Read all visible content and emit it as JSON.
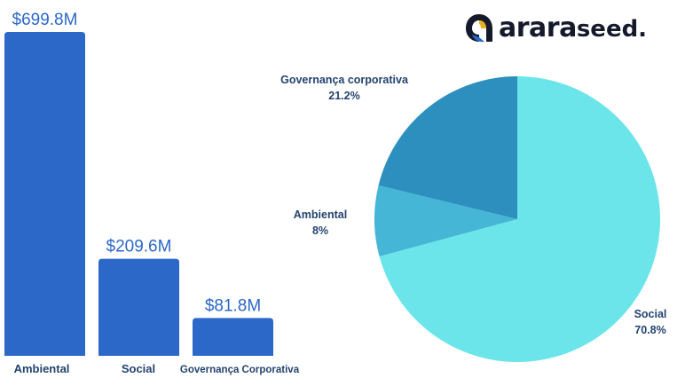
{
  "brand": {
    "name_bold": "arara",
    "name_light": "seed."
  },
  "chart_data": [
    {
      "type": "bar",
      "title": "",
      "xlabel": "",
      "ylabel": "",
      "categories": [
        "Ambiental",
        "Social",
        "Governança Corporativa"
      ],
      "values": [
        699.8,
        209.6,
        81.8
      ],
      "value_labels": [
        "$699.8M",
        "$209.6M",
        "$81.8M"
      ],
      "ylim": [
        0,
        699.8
      ],
      "grid": false,
      "colors": {
        "bar": "#2c68c8",
        "value_label": "#2c68c8",
        "category_label": "#24436f"
      }
    },
    {
      "type": "pie",
      "title": "",
      "slices": [
        {
          "label": "Social",
          "percent_label": "70.8%",
          "value": 70.8,
          "color": "#6ce5ea"
        },
        {
          "label": "Ambiental",
          "percent_label": "8%",
          "value": 8.0,
          "color": "#45b6d6"
        },
        {
          "label": "Governança corporativa",
          "percent_label": "21.2%",
          "value": 21.2,
          "color": "#2d8fbd"
        }
      ],
      "start_angle_deg": 0,
      "direction": "clockwise",
      "label_color": "#24436f"
    }
  ]
}
